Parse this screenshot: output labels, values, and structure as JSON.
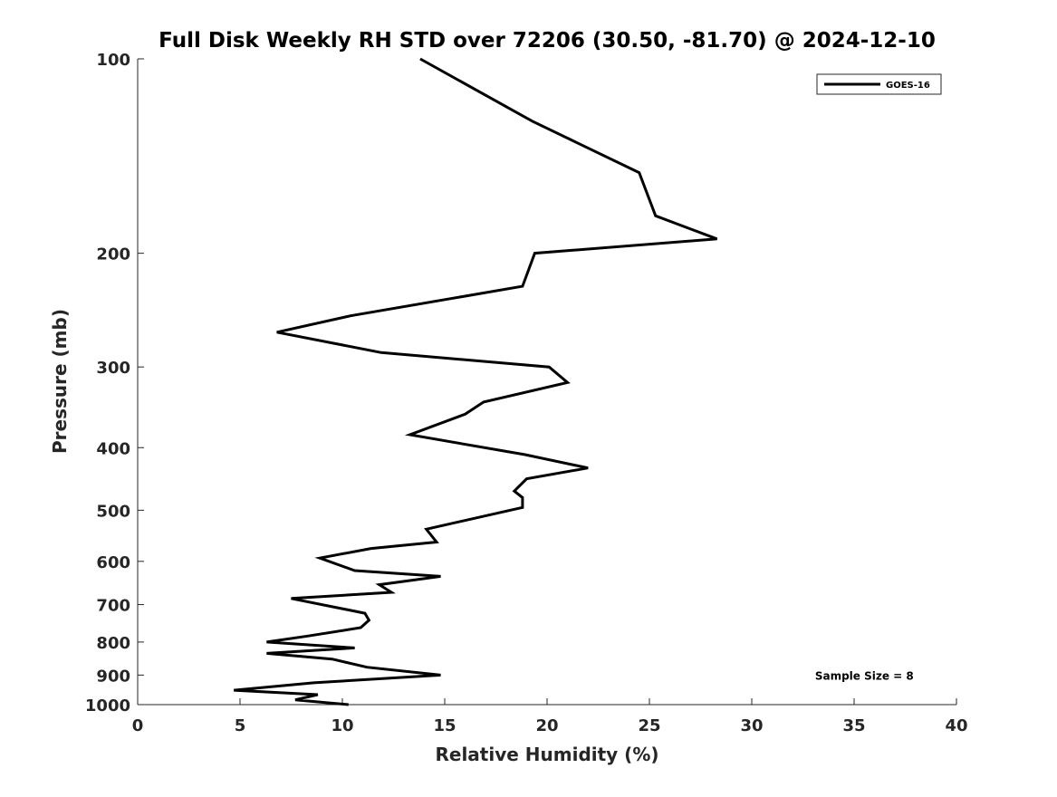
{
  "chart_data": {
    "type": "line",
    "title": "Full Disk Weekly RH STD over 72206 (30.50, -81.70) @ 2024-12-10",
    "xlabel": "Relative Humidity (%)",
    "ylabel": "Pressure (mb)",
    "xlim": [
      0,
      40
    ],
    "ylim": [
      100,
      1000
    ],
    "y_scale": "log",
    "y_inverted": true,
    "grid": false,
    "legend_position": "top-right",
    "x_ticks": [
      0,
      5,
      10,
      15,
      20,
      25,
      30,
      35,
      40
    ],
    "x_tick_labels": [
      "0",
      "5",
      "10",
      "15",
      "20",
      "25",
      "30",
      "35",
      "40"
    ],
    "y_ticks": [
      100,
      200,
      300,
      400,
      500,
      600,
      700,
      800,
      900,
      1000
    ],
    "y_tick_labels": [
      "100",
      "200",
      "300",
      "400",
      "500",
      "600",
      "700",
      "800",
      "900",
      "1000"
    ],
    "series": [
      {
        "name": "GOES-16",
        "color": "#000000",
        "points": [
          [
            13.8,
            100
          ],
          [
            19.3,
            125
          ],
          [
            24.5,
            150
          ],
          [
            25.3,
            175
          ],
          [
            28.3,
            190
          ],
          [
            19.4,
            200
          ],
          [
            18.8,
            225
          ],
          [
            10.4,
            250
          ],
          [
            6.8,
            265
          ],
          [
            11.9,
            285
          ],
          [
            20.1,
            300
          ],
          [
            21.0,
            317
          ],
          [
            16.9,
            340
          ],
          [
            16.0,
            355
          ],
          [
            13.3,
            382
          ],
          [
            18.9,
            410
          ],
          [
            22.0,
            430
          ],
          [
            19.0,
            447
          ],
          [
            18.4,
            467
          ],
          [
            18.8,
            478
          ],
          [
            18.8,
            495
          ],
          [
            14.1,
            535
          ],
          [
            14.6,
            560
          ],
          [
            11.4,
            573
          ],
          [
            8.9,
            593
          ],
          [
            10.6,
            620
          ],
          [
            14.8,
            633
          ],
          [
            11.8,
            652
          ],
          [
            12.4,
            670
          ],
          [
            7.5,
            685
          ],
          [
            11.1,
            722
          ],
          [
            11.3,
            740
          ],
          [
            10.9,
            760
          ],
          [
            8.3,
            783
          ],
          [
            6.3,
            800
          ],
          [
            10.6,
            817
          ],
          [
            6.3,
            833
          ],
          [
            9.5,
            850
          ],
          [
            11.2,
            875
          ],
          [
            14.8,
            900
          ],
          [
            8.6,
            925
          ],
          [
            4.7,
            950
          ],
          [
            8.8,
            965
          ],
          [
            7.7,
            983
          ],
          [
            10.3,
            1000
          ]
        ]
      }
    ],
    "annotations": [
      {
        "text": "Sample Size = 8",
        "x": 35.5,
        "y": 900
      }
    ]
  }
}
